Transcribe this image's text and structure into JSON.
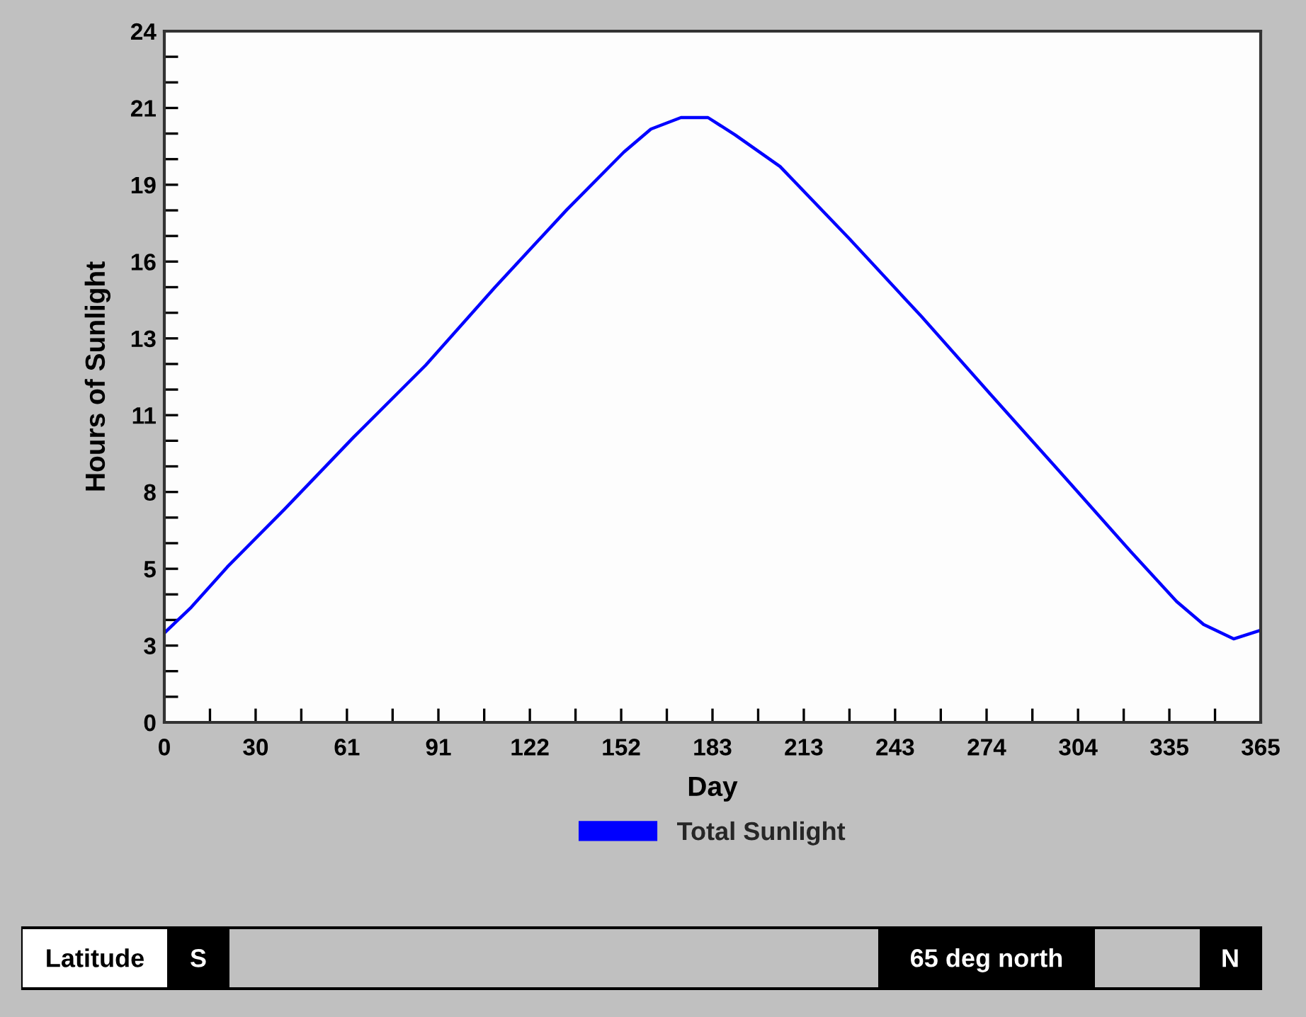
{
  "chart_data": {
    "type": "line",
    "xlabel": "Day",
    "ylabel": "Hours of Sunlight",
    "series": [
      {
        "name": "Total Sunlight",
        "color": "#0000ff",
        "x": [
          0,
          9,
          21,
          40,
          63,
          87,
          110,
          134,
          153,
          162,
          172,
          181,
          190,
          205,
          228,
          252,
          275,
          299,
          322,
          337,
          346,
          356,
          365
        ],
        "values": [
          3.1,
          4.0,
          5.4,
          7.4,
          9.9,
          12.4,
          15.1,
          17.8,
          19.8,
          20.6,
          21.0,
          21.0,
          20.4,
          19.3,
          16.8,
          14.1,
          11.4,
          8.6,
          5.9,
          4.2,
          3.4,
          2.9,
          3.2
        ]
      }
    ],
    "xlim": [
      0,
      365
    ],
    "ylim": [
      0,
      24
    ],
    "xticks": [
      0,
      {
        "value": 15.2,
        "label": null
      },
      {
        "value": 30.4,
        "label": "30"
      },
      {
        "value": 45.6,
        "label": null
      },
      {
        "value": 60.8,
        "label": "61"
      },
      {
        "value": 76.0,
        "label": null
      },
      {
        "value": 91.25,
        "label": "91"
      },
      {
        "value": 106.5,
        "label": null
      },
      {
        "value": 121.7,
        "label": "122"
      },
      {
        "value": 136.9,
        "label": null
      },
      {
        "value": 152.1,
        "label": "152"
      },
      {
        "value": 167.3,
        "label": null
      },
      {
        "value": 182.5,
        "label": "183"
      },
      {
        "value": 197.7,
        "label": null
      },
      {
        "value": 212.9,
        "label": "213"
      },
      {
        "value": 228.1,
        "label": null
      },
      {
        "value": 243.3,
        "label": "243"
      },
      {
        "value": 258.5,
        "label": null
      },
      {
        "value": 273.75,
        "label": "274"
      },
      {
        "value": 289.0,
        "label": null
      },
      {
        "value": 304.2,
        "label": "304"
      },
      {
        "value": 319.4,
        "label": null
      },
      {
        "value": 334.6,
        "label": "335"
      },
      {
        "value": 349.8,
        "label": null
      },
      365
    ],
    "yticks": [
      0,
      {
        "value": 0.889,
        "label": null
      },
      {
        "value": 1.778,
        "label": null
      },
      {
        "value": 2.667,
        "label": "3"
      },
      {
        "value": 3.556,
        "label": null
      },
      {
        "value": 4.444,
        "label": null
      },
      {
        "value": 5.333,
        "label": "5"
      },
      {
        "value": 6.222,
        "label": null
      },
      {
        "value": 7.111,
        "label": null
      },
      8,
      {
        "value": 8.889,
        "label": null
      },
      {
        "value": 9.778,
        "label": null
      },
      {
        "value": 10.667,
        "label": "11"
      },
      {
        "value": 11.556,
        "label": null
      },
      {
        "value": 12.444,
        "label": null
      },
      {
        "value": 13.333,
        "label": "13"
      },
      {
        "value": 14.222,
        "label": null
      },
      {
        "value": 15.111,
        "label": null
      },
      16,
      {
        "value": 16.889,
        "label": null
      },
      {
        "value": 17.778,
        "label": null
      },
      {
        "value": 18.667,
        "label": "19"
      },
      {
        "value": 19.556,
        "label": null
      },
      {
        "value": 20.444,
        "label": null
      },
      {
        "value": 21.333,
        "label": "21"
      },
      {
        "value": 22.222,
        "label": null
      },
      {
        "value": 23.111,
        "label": null
      },
      24
    ],
    "grid": false,
    "legend": "bottom",
    "annotations": [
      "Latitude",
      "S",
      "65 deg north",
      "N"
    ]
  }
}
